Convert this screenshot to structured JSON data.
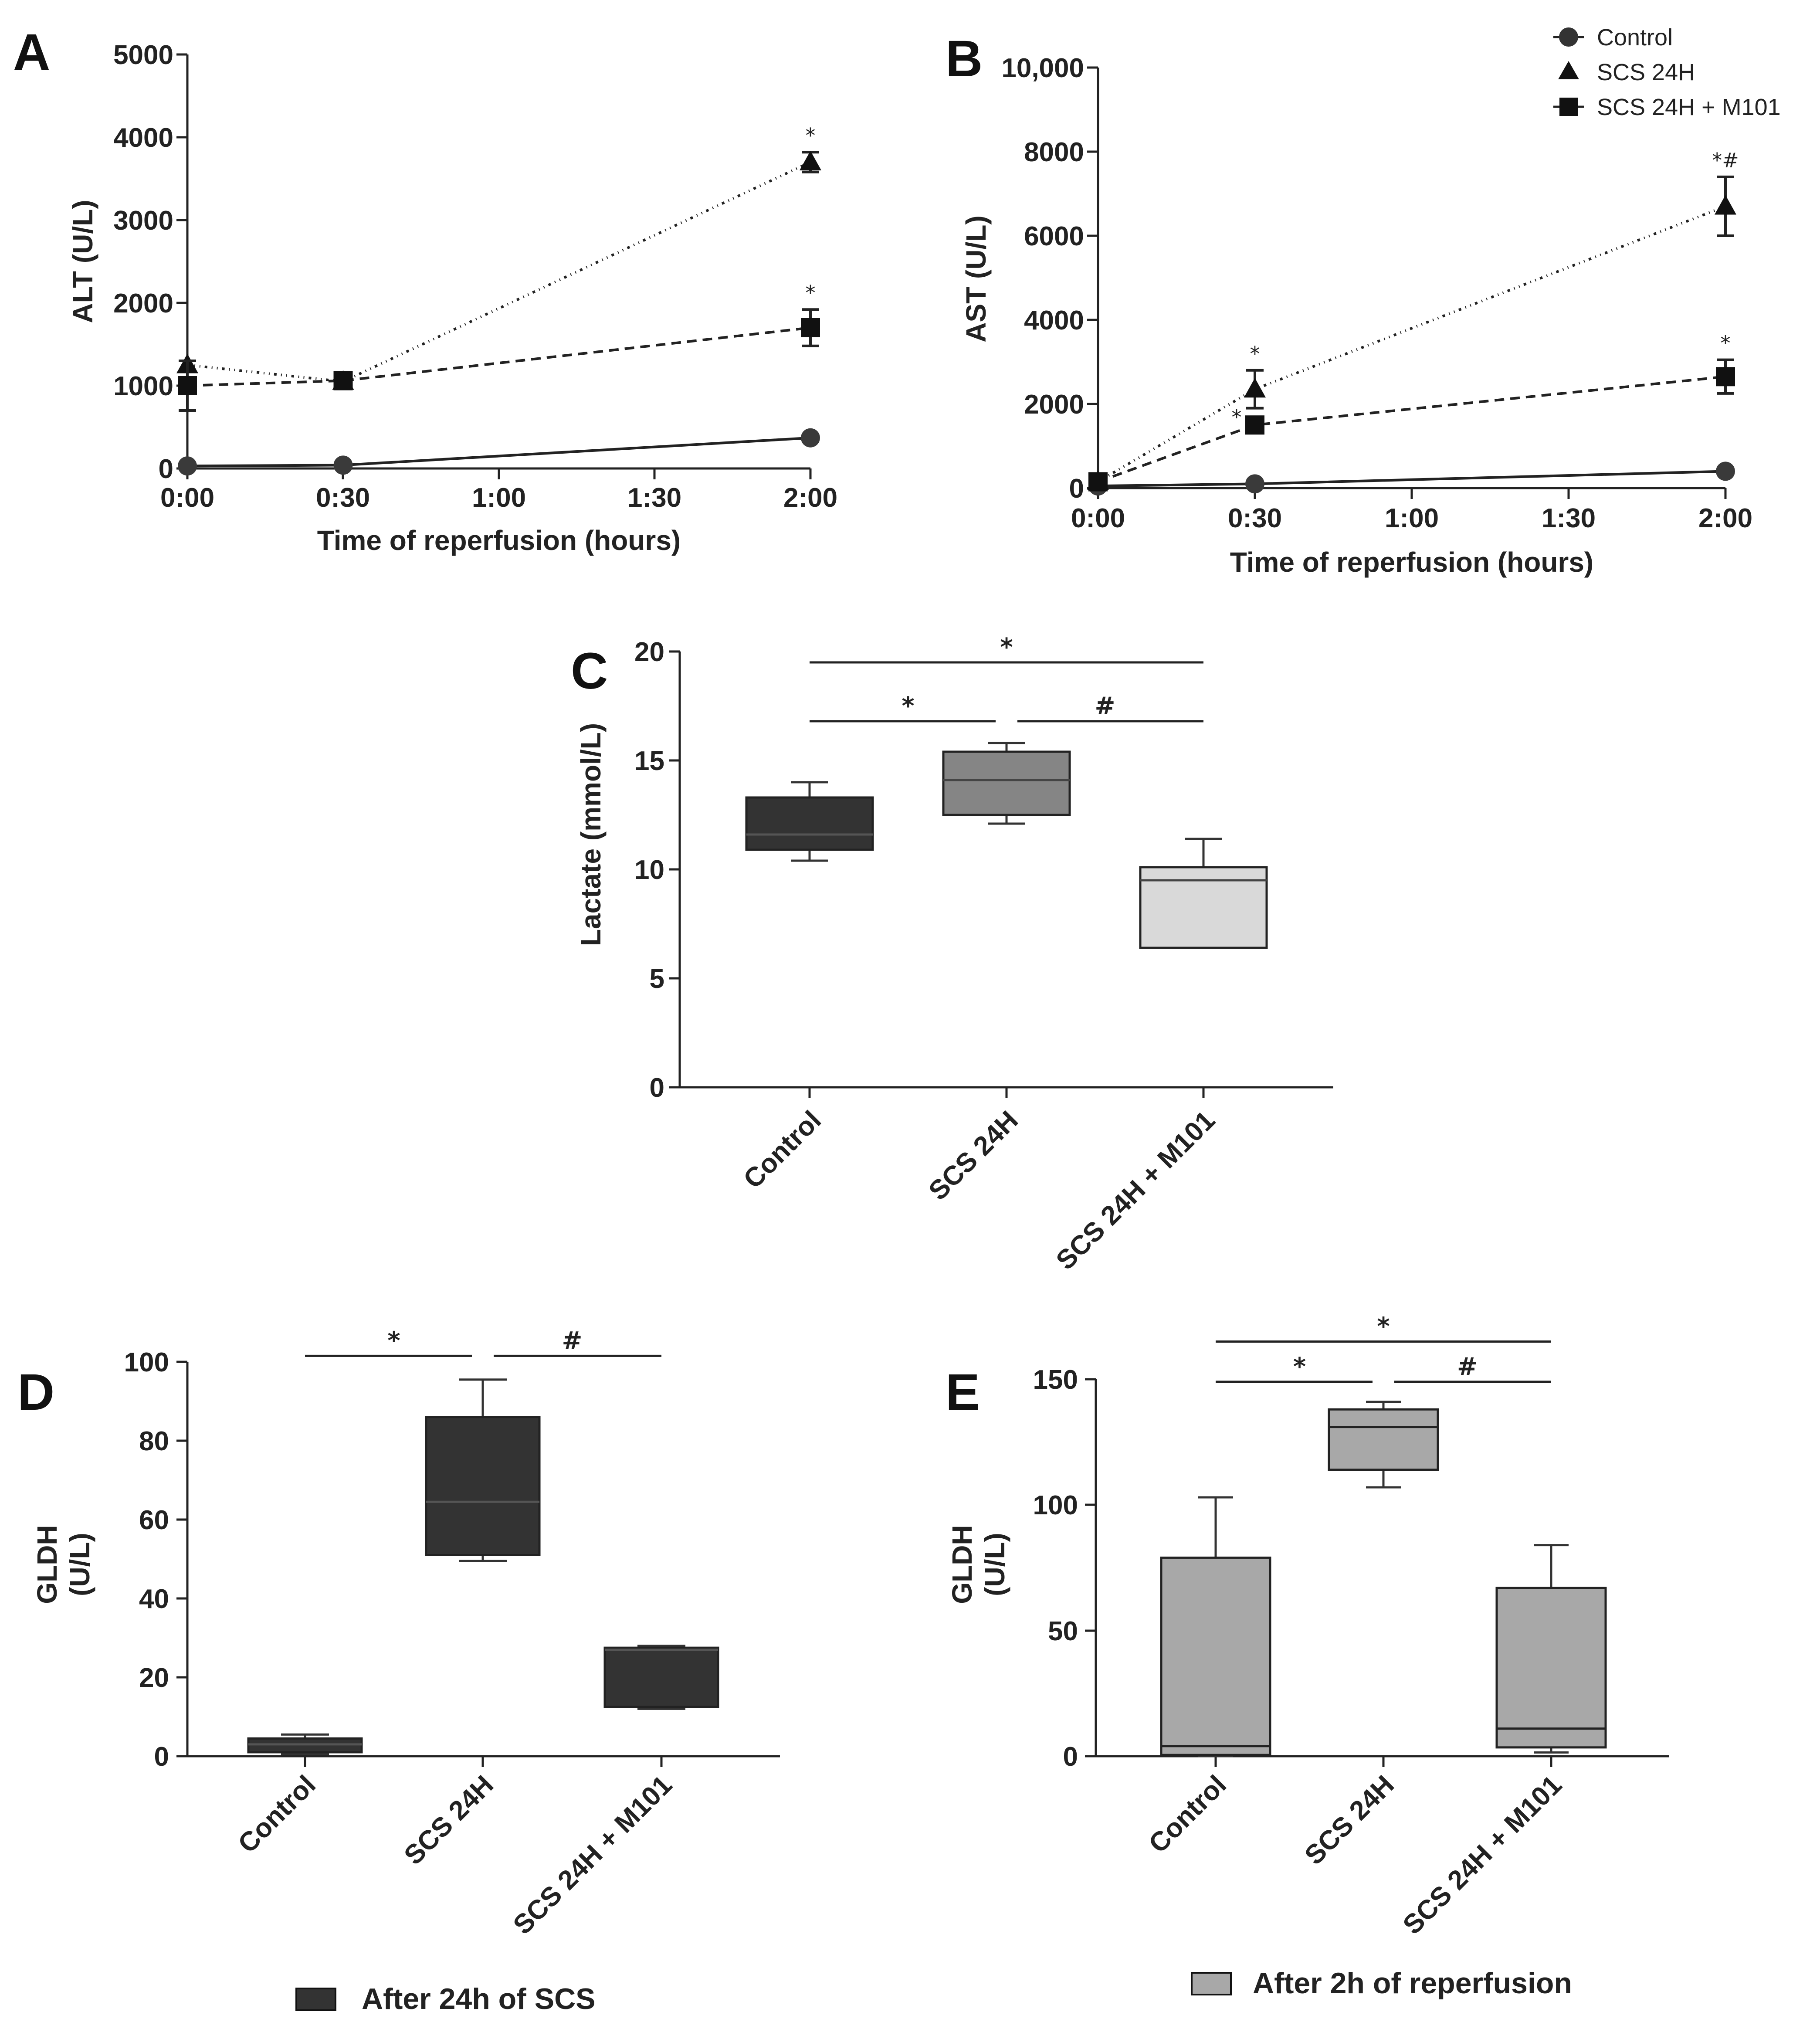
{
  "chart_data": [
    {
      "panel": "A",
      "type": "line",
      "xlabel": "Time of reperfusion (hours)",
      "ylabel": "ALT (U/L)",
      "x_ticks": [
        "0:00",
        "0:30",
        "1:00",
        "1:30",
        "2:00"
      ],
      "x_values": [
        0,
        0.5,
        1,
        1.5,
        2
      ],
      "ylim": [
        0,
        5000
      ],
      "y_ticks": [
        "0",
        "1000",
        "2000",
        "3000",
        "4000",
        "5000"
      ],
      "series": [
        {
          "name": "Control",
          "marker": "circle",
          "x": [
            0,
            0.5,
            2
          ],
          "y": [
            30,
            40,
            370
          ],
          "err": [
            0,
            0,
            0
          ],
          "labels": [
            "",
            "",
            ""
          ]
        },
        {
          "name": "SCS 24H",
          "marker": "triangle",
          "x": [
            0,
            0.5,
            2
          ],
          "y": [
            1250,
            1050,
            3700
          ],
          "err": [
            0,
            0,
            120
          ],
          "labels": [
            "",
            "",
            "*"
          ]
        },
        {
          "name": "SCS 24H + M101",
          "marker": "square",
          "x": [
            0,
            0.5,
            2
          ],
          "y": [
            1000,
            1060,
            1700
          ],
          "err": [
            300,
            0,
            220
          ],
          "labels": [
            "",
            "",
            "*"
          ]
        }
      ]
    },
    {
      "panel": "B",
      "type": "line",
      "xlabel": "Time of reperfusion (hours)",
      "ylabel": "AST (U/L)",
      "x_ticks": [
        "0:00",
        "0:30",
        "1:00",
        "1:30",
        "2:00"
      ],
      "x_values": [
        0,
        0.5,
        1,
        1.5,
        2
      ],
      "ylim": [
        0,
        10000
      ],
      "y_ticks": [
        "0",
        "2000",
        "4000",
        "6000",
        "8000",
        "10,000"
      ],
      "legend": [
        "Control",
        "SCS 24H",
        "SCS 24H + M101"
      ],
      "series": [
        {
          "name": "Control",
          "marker": "circle",
          "x": [
            0,
            0.5,
            2
          ],
          "y": [
            50,
            100,
            400
          ],
          "err": [
            0,
            0,
            0
          ],
          "labels": [
            "",
            "",
            ""
          ]
        },
        {
          "name": "SCS 24H",
          "marker": "triangle",
          "x": [
            0,
            0.5,
            2
          ],
          "y": [
            150,
            2350,
            6700
          ],
          "err": [
            0,
            450,
            700
          ],
          "labels": [
            "",
            "*",
            "*#"
          ]
        },
        {
          "name": "SCS 24H + M101",
          "marker": "square",
          "x": [
            0,
            0.5,
            2
          ],
          "y": [
            150,
            1500,
            2650
          ],
          "err": [
            0,
            0,
            400
          ],
          "labels": [
            "",
            "*",
            "*"
          ]
        }
      ]
    },
    {
      "panel": "C",
      "type": "box",
      "ylabel": "Lactate (mmol/L)",
      "ylim": [
        0,
        20
      ],
      "y_ticks": [
        "0",
        "5",
        "10",
        "15",
        "20"
      ],
      "categories": [
        "Control",
        "SCS 24H",
        "SCS 24H + M101"
      ],
      "boxes": [
        {
          "min": 10.4,
          "q1": 10.9,
          "median": 11.6,
          "q3": 13.3,
          "max": 14.0,
          "color": "#333333"
        },
        {
          "min": 12.1,
          "q1": 12.5,
          "median": 14.1,
          "q3": 15.4,
          "max": 15.8,
          "color": "#858585"
        },
        {
          "min": 6.4,
          "q1": 6.4,
          "median": 9.5,
          "q3": 10.1,
          "max": 11.4,
          "color": "#d9d9d9"
        }
      ],
      "significance": [
        {
          "from": 0,
          "to": 2,
          "y": 19.5,
          "label": "*"
        },
        {
          "from": 0,
          "to": 1,
          "y": 16.8,
          "label": "*"
        },
        {
          "from": 1,
          "to": 2,
          "y": 16.8,
          "label": "#"
        }
      ]
    },
    {
      "panel": "D",
      "type": "box",
      "ylabel": "GLDH (U/L)",
      "ylim": [
        0,
        100
      ],
      "y_ticks": [
        "0",
        "20",
        "40",
        "60",
        "80",
        "100"
      ],
      "categories": [
        "Control",
        "SCS 24H",
        "SCS 24H + M101"
      ],
      "legend": "After 24h of SCS",
      "color": "#333333",
      "boxes": [
        {
          "min": 0.5,
          "q1": 1,
          "median": 3,
          "q3": 4.5,
          "max": 5.5
        },
        {
          "min": 49.5,
          "q1": 51,
          "median": 64.5,
          "q3": 86,
          "max": 95.5
        },
        {
          "min": 12,
          "q1": 12.5,
          "median": 27,
          "q3": 27.5,
          "max": 28
        }
      ],
      "significance": [
        {
          "from": 0,
          "to": 1,
          "y": 101.5,
          "label": "*"
        },
        {
          "from": 1,
          "to": 2,
          "y": 101.5,
          "label": "#"
        }
      ]
    },
    {
      "panel": "E",
      "type": "box",
      "ylabel": "GLDH (U/L)",
      "ylim": [
        0,
        150
      ],
      "y_ticks": [
        "0",
        "50",
        "100",
        "150"
      ],
      "categories": [
        "Control",
        "SCS 24H",
        "SCS 24H + M101"
      ],
      "legend": "After 2h of reperfusion",
      "color": "#a8a8a8",
      "boxes": [
        {
          "min": 0,
          "q1": 0.5,
          "median": 4,
          "q3": 79,
          "max": 103
        },
        {
          "min": 107,
          "q1": 114,
          "median": 131,
          "q3": 138,
          "max": 141
        },
        {
          "min": 1.5,
          "q1": 3.5,
          "median": 11,
          "q3": 67,
          "max": 84
        }
      ],
      "significance": [
        {
          "from": 0,
          "to": 2,
          "y": 165,
          "label": "*"
        },
        {
          "from": 0,
          "to": 1,
          "y": 149,
          "label": "*"
        },
        {
          "from": 1,
          "to": 2,
          "y": 149,
          "label": "#"
        }
      ]
    }
  ]
}
